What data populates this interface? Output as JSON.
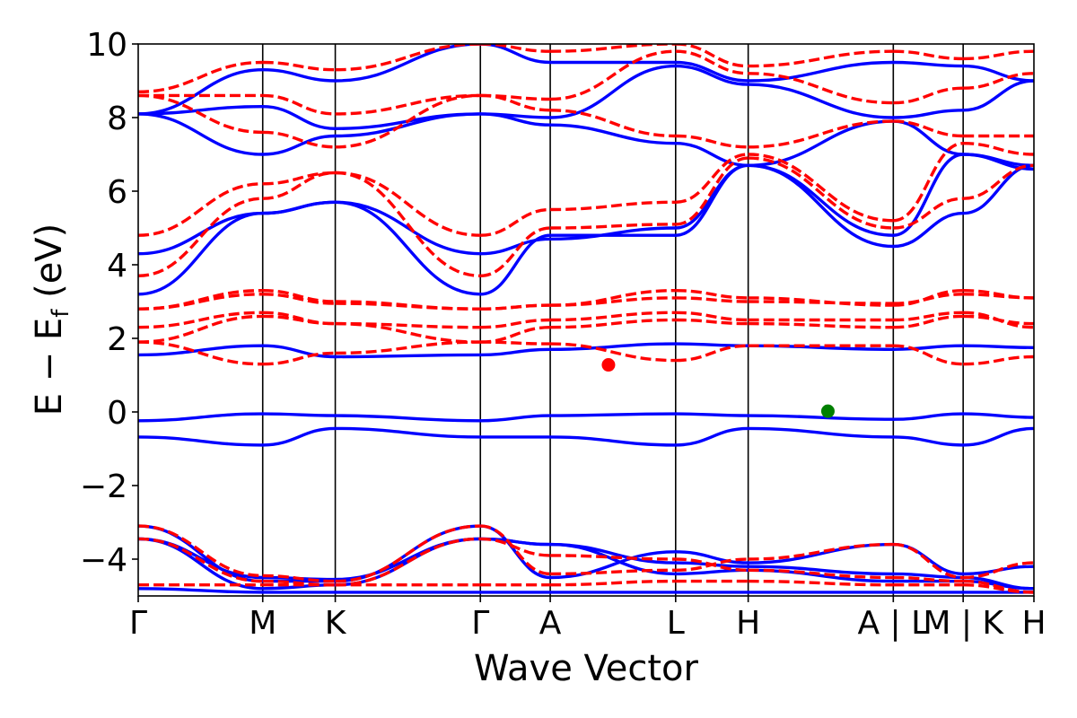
{
  "chart_data": {
    "type": "line",
    "title": "",
    "xlabel": "Wave Vector",
    "ylabel_main": "E − E",
    "ylabel_sub": "f",
    "ylabel_unit": " (eV)",
    "ylim": [
      -5,
      10
    ],
    "grid": false,
    "legend": "none",
    "y_ticks": [
      {
        "value": -4,
        "label": "−4"
      },
      {
        "value": -2,
        "label": "−2"
      },
      {
        "value": 0,
        "label": "0"
      },
      {
        "value": 2,
        "label": "2"
      },
      {
        "value": 4,
        "label": "4"
      },
      {
        "value": 6,
        "label": "6"
      },
      {
        "value": 8,
        "label": "8"
      },
      {
        "value": 10,
        "label": "10"
      }
    ],
    "k_points": [
      {
        "label": "Γ",
        "k": 0.0
      },
      {
        "label": "M",
        "k": 0.139
      },
      {
        "label": "K",
        "k": 0.22
      },
      {
        "label": "Γ",
        "k": 0.382
      },
      {
        "label": "A",
        "k": 0.46
      },
      {
        "label": "L",
        "k": 0.6
      },
      {
        "label": "H",
        "k": 0.681
      },
      {
        "label": "A | L",
        "k": 0.843
      },
      {
        "label": "M | K",
        "k": 0.921
      },
      {
        "label": "H",
        "k": 1.0
      }
    ],
    "segments": [
      [
        0.0,
        0.139
      ],
      [
        0.139,
        0.22
      ],
      [
        0.22,
        0.382
      ],
      [
        0.382,
        0.46
      ],
      [
        0.46,
        0.6
      ],
      [
        0.6,
        0.681
      ],
      [
        0.681,
        0.843
      ],
      [
        0.843,
        0.921
      ],
      [
        0.921,
        1.0
      ]
    ],
    "series": [
      {
        "color": "#0000ff",
        "dash": "solid",
        "bands": [
          [
            -0.68,
            -0.9,
            -0.45,
            -0.68,
            -0.68,
            -0.9,
            -0.45,
            -0.68,
            -0.9,
            -0.45
          ],
          [
            -0.24,
            -0.05,
            -0.1,
            -0.24,
            -0.1,
            -0.05,
            -0.1,
            -0.2,
            -0.05,
            -0.15
          ],
          [
            1.55,
            1.8,
            1.5,
            1.55,
            1.7,
            1.85,
            1.8,
            1.7,
            1.8,
            1.75
          ],
          [
            3.2,
            5.4,
            5.7,
            3.2,
            4.8,
            4.8,
            6.7,
            4.5,
            5.4,
            6.7
          ],
          [
            4.3,
            5.4,
            5.7,
            4.3,
            4.7,
            5.0,
            6.7,
            4.8,
            7.0,
            6.7
          ],
          [
            8.1,
            7.0,
            7.5,
            8.1,
            7.8,
            7.3,
            6.7,
            7.9,
            7.0,
            6.6
          ],
          [
            8.1,
            8.3,
            7.7,
            8.1,
            8.0,
            9.4,
            8.9,
            8.0,
            8.2,
            9.0
          ],
          [
            8.1,
            9.3,
            9.0,
            10.0,
            9.5,
            9.5,
            9.0,
            9.5,
            9.4,
            9.0
          ],
          [
            -3.1,
            -4.6,
            -4.6,
            -3.1,
            -4.5,
            -3.8,
            -4.1,
            -3.6,
            -4.4,
            -4.2
          ],
          [
            -3.45,
            -4.5,
            -4.55,
            -3.45,
            -3.6,
            -4.1,
            -4.2,
            -4.4,
            -4.5,
            -4.8
          ],
          [
            -3.45,
            -4.8,
            -4.7,
            -3.45,
            -3.6,
            -4.4,
            -4.3,
            -4.6,
            -4.6,
            -4.8
          ],
          [
            -4.8,
            -4.9,
            -4.9,
            -4.9,
            -4.9,
            -4.9,
            -4.9,
            -4.9,
            -4.9,
            -4.9
          ]
        ]
      },
      {
        "color": "#ff0000",
        "dash": "dashed",
        "bands": [
          [
            1.9,
            1.3,
            1.6,
            1.9,
            1.85,
            1.4,
            1.8,
            1.8,
            1.3,
            1.5
          ],
          [
            1.9,
            2.6,
            2.4,
            1.9,
            2.3,
            2.5,
            2.4,
            2.3,
            2.6,
            2.4
          ],
          [
            2.3,
            2.7,
            2.4,
            2.3,
            2.5,
            2.7,
            2.5,
            2.5,
            2.7,
            2.3
          ],
          [
            2.8,
            3.3,
            3.0,
            2.8,
            2.9,
            3.3,
            3.1,
            2.9,
            3.3,
            3.1
          ],
          [
            2.8,
            3.2,
            2.95,
            2.8,
            2.9,
            3.1,
            3.0,
            2.95,
            3.2,
            3.1
          ],
          [
            3.7,
            5.8,
            6.5,
            3.7,
            5.0,
            5.1,
            6.9,
            5.0,
            5.8,
            6.7
          ],
          [
            4.8,
            6.2,
            6.5,
            4.8,
            5.5,
            5.7,
            7.0,
            5.2,
            7.3,
            7.0
          ],
          [
            8.6,
            7.6,
            7.2,
            8.6,
            8.2,
            7.5,
            7.2,
            7.9,
            7.5,
            7.5
          ],
          [
            8.6,
            8.6,
            8.1,
            8.6,
            8.5,
            9.8,
            9.2,
            8.4,
            8.8,
            9.2
          ],
          [
            8.7,
            9.5,
            9.3,
            10.0,
            9.8,
            10.0,
            9.4,
            9.8,
            9.6,
            9.8
          ],
          [
            -3.1,
            -4.45,
            -4.6,
            -3.1,
            -4.4,
            -4.3,
            -4.0,
            -3.6,
            -4.5,
            -4.1
          ],
          [
            -3.45,
            -4.6,
            -4.7,
            -3.45,
            -3.9,
            -4.0,
            -4.3,
            -4.5,
            -4.6,
            -4.9
          ],
          [
            -4.7,
            -4.7,
            -4.7,
            -4.7,
            -4.7,
            -4.6,
            -4.6,
            -4.7,
            -4.7,
            -4.9
          ]
        ]
      }
    ],
    "markers": [
      {
        "k": 0.525,
        "e": 1.28,
        "color": "#ff0000",
        "edge": "#ff0000"
      },
      {
        "k": 0.77,
        "e": 0.02,
        "color": "#008000",
        "edge": "#008000"
      }
    ]
  }
}
